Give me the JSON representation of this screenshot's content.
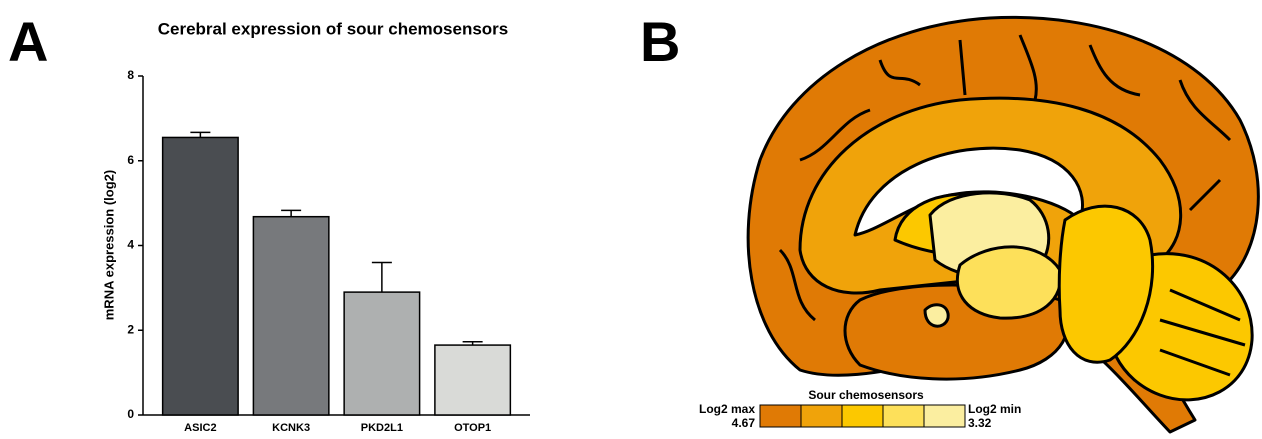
{
  "panels": {
    "a": "A",
    "b": "B"
  },
  "chart_data": {
    "type": "bar",
    "title": "Cerebral expression of sour chemosensors",
    "y_label": "mRNA expression (log2)",
    "categories": [
      "ASIC2",
      "KCNK3",
      "PKD2L1",
      "OTOP1"
    ],
    "values": [
      6.55,
      4.68,
      2.9,
      1.65
    ],
    "errors": [
      0.12,
      0.15,
      0.7,
      0.08
    ],
    "colors": [
      "#4a4d51",
      "#77797c",
      "#aeb0b0",
      "#d9dad7"
    ],
    "ylim": [
      0,
      8
    ],
    "yticks": [
      0,
      2,
      4,
      6,
      8
    ],
    "grid": false
  },
  "brain_legend": {
    "title": "Sour chemosensors",
    "max_label": "Log2 max",
    "max_value": "4.67",
    "min_label": "Log2 min",
    "min_value": "3.32",
    "colors": [
      "#e07a05",
      "#f0a30a",
      "#fcc800",
      "#fde05a",
      "#fbeea0"
    ]
  }
}
